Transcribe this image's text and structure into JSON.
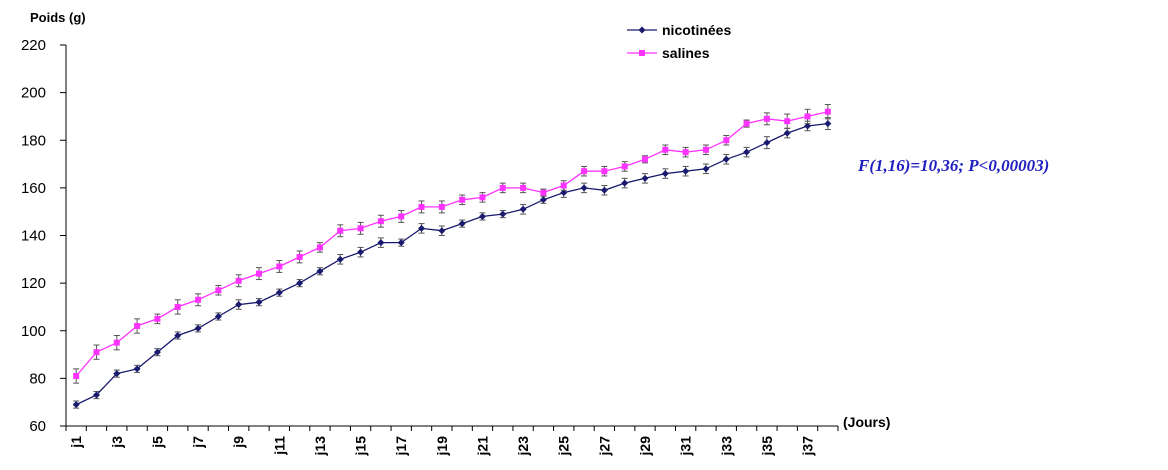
{
  "chart_data": {
    "type": "line",
    "ylabel": "Poids (g)",
    "xlabel": "(Jours)",
    "annotation": "F(1,16)=10,36; P<0,00003)",
    "ylim": [
      60,
      220
    ],
    "yticks": [
      60,
      80,
      100,
      120,
      140,
      160,
      180,
      200,
      220
    ],
    "x": [
      "j1",
      "j2",
      "j3",
      "j4",
      "j5",
      "j6",
      "j7",
      "j8",
      "j9",
      "j10",
      "j11",
      "j12",
      "j13",
      "j14",
      "j15",
      "j16",
      "j17",
      "j18",
      "j19",
      "j20",
      "j21",
      "j22",
      "j23",
      "j24",
      "j25",
      "j26",
      "j27",
      "j28",
      "j29",
      "j30",
      "j31",
      "j32",
      "j33",
      "j34",
      "j35",
      "j36",
      "j37",
      "j38"
    ],
    "xtick_labels": [
      "j1",
      "j3",
      "j5",
      "j7",
      "j9",
      "j11",
      "j13",
      "j15",
      "j17",
      "j19",
      "j21",
      "j23",
      "j25",
      "j27",
      "j29",
      "j31",
      "j33",
      "j35",
      "j37"
    ],
    "legend_position": "top-right",
    "grid": false,
    "series": [
      {
        "name": "nicotinées",
        "color": "#1a1a6e",
        "marker": "diamond",
        "values": [
          69,
          73,
          82,
          84,
          91,
          98,
          101,
          106,
          111,
          112,
          116,
          120,
          125,
          130,
          133,
          137,
          137,
          143,
          142,
          145,
          148,
          149,
          151,
          155,
          158,
          160,
          159,
          162,
          164,
          166,
          167,
          168,
          172,
          175,
          179,
          183,
          186,
          187
        ],
        "errors": [
          1.5,
          1.5,
          1.5,
          1.5,
          1.5,
          1.5,
          1.5,
          1.5,
          2,
          1.5,
          1.5,
          1.5,
          1.5,
          2,
          2,
          2,
          1.5,
          2,
          2,
          1.5,
          1.5,
          1.5,
          2,
          1.5,
          2,
          2,
          2,
          2,
          2,
          2,
          2,
          2,
          2,
          2,
          2.5,
          2,
          2,
          2.5
        ]
      },
      {
        "name": "salines",
        "color": "#ff33ff",
        "marker": "square",
        "values": [
          81,
          91,
          95,
          102,
          105,
          110,
          113,
          117,
          121,
          124,
          127,
          131,
          135,
          142,
          143,
          146,
          148,
          152,
          152,
          155,
          156,
          160,
          160,
          158,
          161,
          167,
          167,
          169,
          172,
          176,
          175,
          176,
          180,
          187,
          189,
          188,
          190,
          192
        ],
        "errors": [
          3,
          3,
          3,
          3,
          2,
          3,
          2.5,
          2,
          2.5,
          2.5,
          2.5,
          2.5,
          2,
          2.5,
          2.5,
          2.5,
          2.5,
          2.5,
          2.5,
          2,
          2,
          2,
          2,
          1.5,
          2,
          2,
          2,
          2,
          1.5,
          2,
          2,
          2,
          2,
          1.5,
          2.5,
          3,
          3,
          3
        ]
      }
    ]
  }
}
